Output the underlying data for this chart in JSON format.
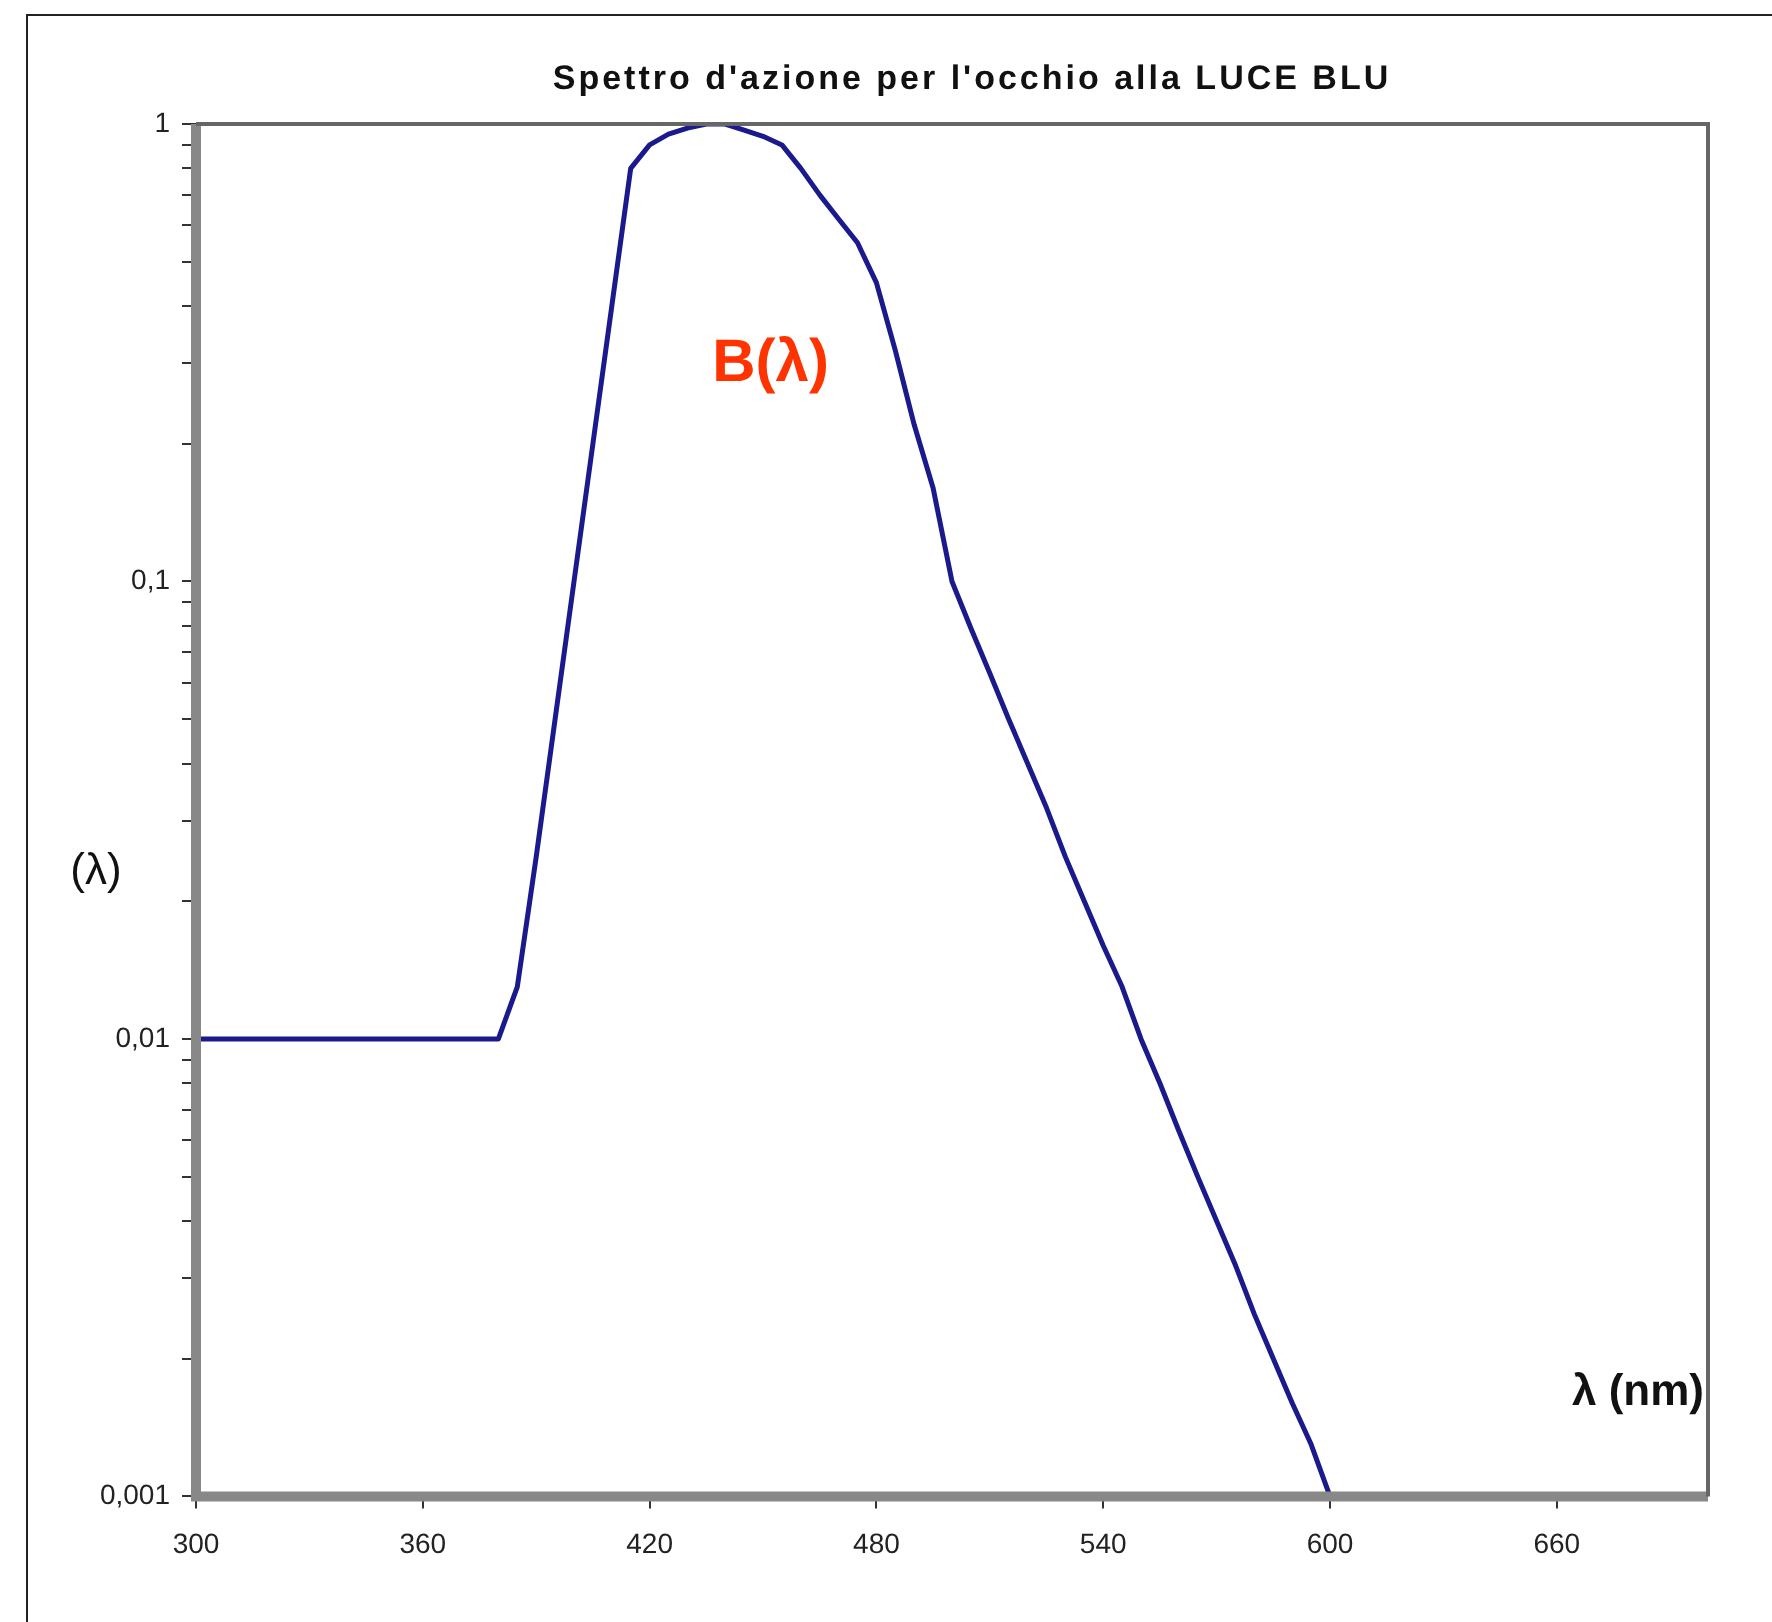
{
  "chart_data": {
    "type": "line",
    "title": "Spettro d'azione per l'occhio alla LUCE BLU",
    "xlabel": "λ (nm)",
    "ylabel": "(λ)",
    "x": [
      300,
      380,
      385,
      390,
      395,
      400,
      405,
      410,
      415,
      420,
      425,
      430,
      435,
      440,
      445,
      450,
      455,
      460,
      465,
      470,
      475,
      480,
      485,
      490,
      495,
      500,
      505,
      510,
      515,
      520,
      525,
      530,
      535,
      540,
      545,
      550,
      555,
      560,
      565,
      570,
      575,
      580,
      585,
      590,
      595,
      600,
      700
    ],
    "series": [
      {
        "color": "#1a1a8c",
        "values": [
          0.01,
          0.01,
          0.013,
          0.025,
          0.05,
          0.1,
          0.2,
          0.4,
          0.8,
          0.9,
          0.95,
          0.98,
          1,
          1,
          0.97,
          0.94,
          0.9,
          0.8,
          0.7,
          0.62,
          0.55,
          0.45,
          0.32,
          0.22,
          0.16,
          0.1,
          0.079,
          0.063,
          0.05,
          0.04,
          0.032,
          0.025,
          0.02,
          0.016,
          0.013,
          0.01,
          0.008,
          0.0063,
          0.005,
          0.004,
          0.0032,
          0.0025,
          0.002,
          0.0016,
          0.0013,
          0.001,
          0.001
        ]
      }
    ],
    "xlim": [
      300,
      700
    ],
    "xticks": [
      300,
      360,
      420,
      480,
      540,
      600,
      660
    ],
    "log": "y",
    "ylim": [
      0.001,
      1
    ],
    "yticks": [
      {
        "value": 0.001,
        "label": "0,001"
      },
      {
        "value": 0.002,
        "label": null
      },
      {
        "value": 0.003,
        "label": null
      },
      {
        "value": 0.004,
        "label": null
      },
      {
        "value": 0.005,
        "label": null
      },
      {
        "value": 0.006,
        "label": null
      },
      {
        "value": 0.007,
        "label": null
      },
      {
        "value": 0.008,
        "label": null
      },
      {
        "value": 0.009,
        "label": null
      },
      {
        "value": 0.01,
        "label": "0,01"
      },
      {
        "value": 0.02,
        "label": null
      },
      {
        "value": 0.03,
        "label": null
      },
      {
        "value": 0.04,
        "label": null
      },
      {
        "value": 0.05,
        "label": null
      },
      {
        "value": 0.06,
        "label": null
      },
      {
        "value": 0.07,
        "label": null
      },
      {
        "value": 0.08,
        "label": null
      },
      {
        "value": 0.09,
        "label": null
      },
      {
        "value": 0.1,
        "label": "0,1"
      },
      {
        "value": 0.2,
        "label": null
      },
      {
        "value": 0.3,
        "label": null
      },
      {
        "value": 0.4,
        "label": null
      },
      {
        "value": 0.5,
        "label": null
      },
      {
        "value": 0.6,
        "label": null
      },
      {
        "value": 0.7,
        "label": null
      },
      {
        "value": 0.8,
        "label": null
      },
      {
        "value": 0.9,
        "label": null
      },
      1
    ],
    "annotations": [
      "B(λ)"
    ],
    "grid": false,
    "legend": false,
    "marker": "none",
    "line_style": "solid"
  }
}
